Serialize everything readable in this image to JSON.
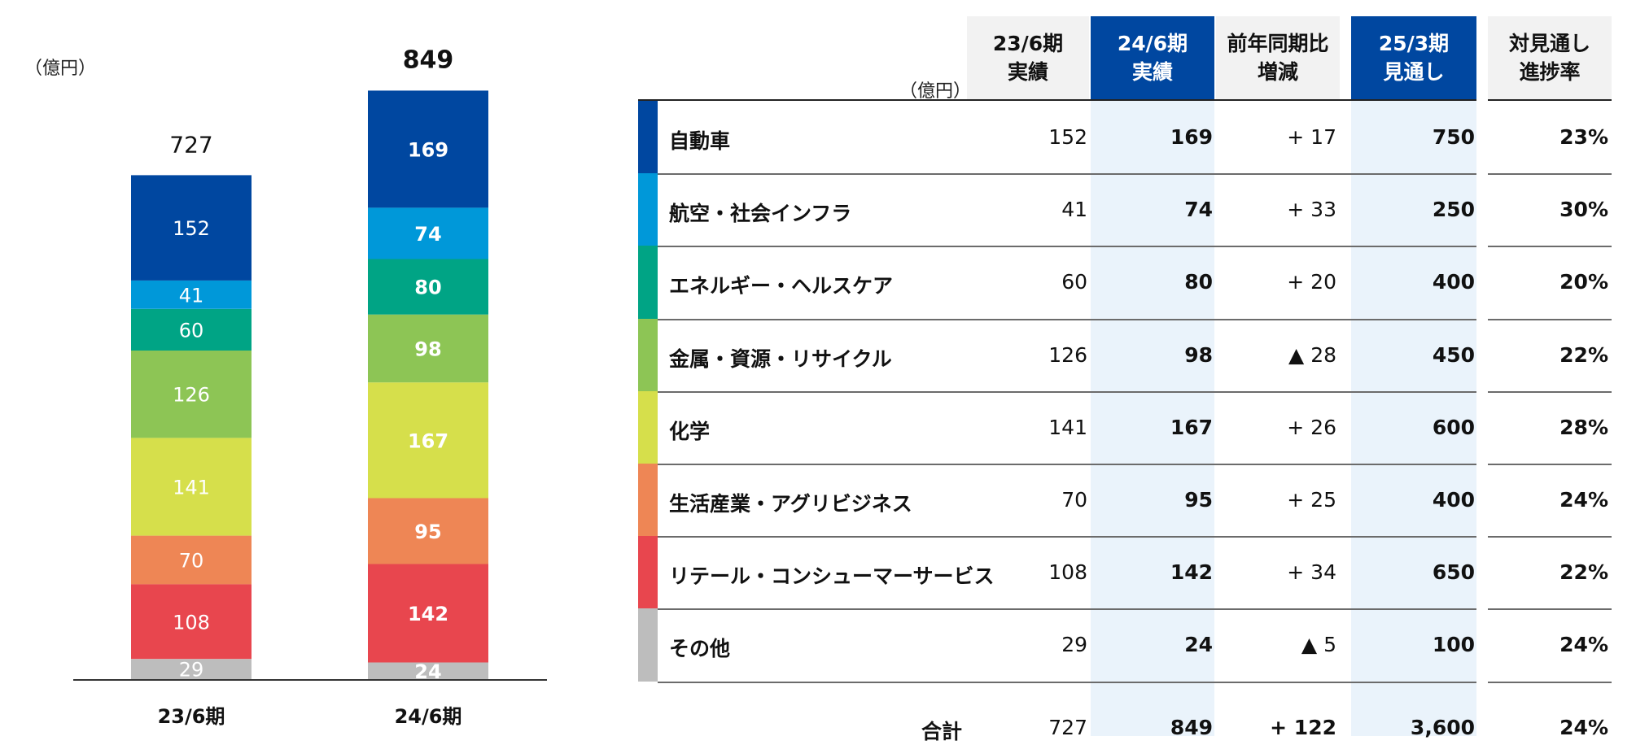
{
  "chart_data": {
    "type": "bar",
    "stacked": true,
    "unit_label": "（億円）",
    "categories": [
      "23/6期",
      "24/6期"
    ],
    "totals": [
      "727",
      "849"
    ],
    "series": [
      {
        "name": "その他",
        "color": "#bdbdbd",
        "values": [
          29,
          24
        ]
      },
      {
        "name": "リテール・コンシューマーサービス",
        "color": "#e8464e",
        "values": [
          108,
          142
        ]
      },
      {
        "name": "生活産業・アグリビジネス",
        "color": "#ee8655",
        "values": [
          70,
          95
        ]
      },
      {
        "name": "化学",
        "color": "#d6df4b",
        "values": [
          141,
          167
        ]
      },
      {
        "name": "金属・資源・リサイクル",
        "color": "#8dc555",
        "values": [
          126,
          98
        ]
      },
      {
        "name": "エネルギー・ヘルスケア",
        "color": "#00a485",
        "values": [
          60,
          80
        ]
      },
      {
        "name": "航空・社会インフラ",
        "color": "#0098d9",
        "values": [
          41,
          74
        ]
      },
      {
        "name": "自動車",
        "color": "#0047a0",
        "values": [
          152,
          169
        ]
      }
    ]
  },
  "table": {
    "unit_label": "（億円）",
    "headers": [
      "23/6期\n実績",
      "24/6期\n実績",
      "前年同期比\n増減",
      "25/3期\n見通し",
      "対見通し\n進捗率"
    ],
    "rows": [
      {
        "label": "自動車",
        "color": "#0047a0",
        "cells": [
          "152",
          "169",
          "+ 17",
          "750",
          "23%"
        ]
      },
      {
        "label": "航空・社会インフラ",
        "color": "#0098d9",
        "cells": [
          "41",
          "74",
          "+ 33",
          "250",
          "30%"
        ]
      },
      {
        "label": "エネルギー・ヘルスケア",
        "color": "#00a485",
        "cells": [
          "60",
          "80",
          "+ 20",
          "400",
          "20%"
        ]
      },
      {
        "label": "金属・資源・リサイクル",
        "color": "#8dc555",
        "cells": [
          "126",
          "98",
          "▲ 28",
          "450",
          "22%"
        ]
      },
      {
        "label": "化学",
        "color": "#d6df4b",
        "cells": [
          "141",
          "167",
          "+ 26",
          "600",
          "28%"
        ]
      },
      {
        "label": "生活産業・アグリビジネス",
        "color": "#ee8655",
        "cells": [
          "70",
          "95",
          "+ 25",
          "400",
          "24%"
        ]
      },
      {
        "label": "リテール・コンシューマーサービス",
        "color": "#e8464e",
        "cells": [
          "108",
          "142",
          "+ 34",
          "650",
          "22%"
        ]
      },
      {
        "label": "その他",
        "color": "#bdbdbd",
        "cells": [
          "29",
          "24",
          "▲ 5",
          "100",
          "24%"
        ]
      }
    ],
    "total": {
      "label": "合計",
      "cells": [
        "727",
        "849",
        "+ 122",
        "3,600",
        "24%"
      ]
    }
  }
}
